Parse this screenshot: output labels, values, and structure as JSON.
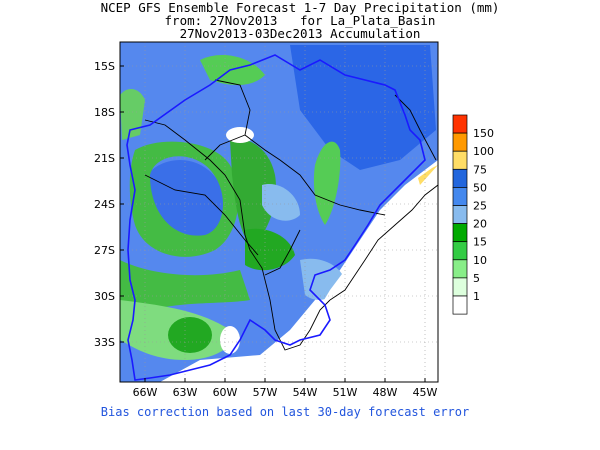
{
  "title": {
    "line1": "NCEP GFS Ensemble Forecast 1-7 Day Precipitation (mm)",
    "line2": "from: 27Nov2013   for La_Plata_Basin",
    "line3": "27Nov2013-03Dec2013 Accumulation"
  },
  "footer": "Bias correction based on last 30-day forecast error",
  "map": {
    "lat_labels": [
      "15S",
      "18S",
      "21S",
      "24S",
      "27S",
      "30S",
      "33S"
    ],
    "lon_labels": [
      "66W",
      "63W",
      "60W",
      "57W",
      "54W",
      "51W",
      "48W",
      "45W"
    ],
    "lat_values": [
      -15,
      -18,
      -21,
      -24,
      -27,
      -30,
      -33
    ],
    "lon_values": [
      -66,
      -63,
      -60,
      -57,
      -54,
      -51,
      -48,
      -45
    ]
  },
  "legend": {
    "labels": [
      "150",
      "100",
      "75",
      "50",
      "25",
      "20",
      "15",
      "10",
      "5",
      "1"
    ],
    "colors": [
      "#ff3300",
      "#ff9900",
      "#ffdd66",
      "#2266dd",
      "#4488ee",
      "#88bbee",
      "#00aa00",
      "#33cc44",
      "#88ee88",
      "#ddffdd",
      "#ffffff"
    ]
  },
  "colors": {
    "rain_blue": "#5588ee",
    "dark_blue": "#2255dd",
    "light_blue": "#88bbee",
    "green": "#33bb33",
    "dark_green": "#119911",
    "light_green": "#99ee99",
    "basin_outline": "#1a1aff",
    "borders": "#000000"
  }
}
